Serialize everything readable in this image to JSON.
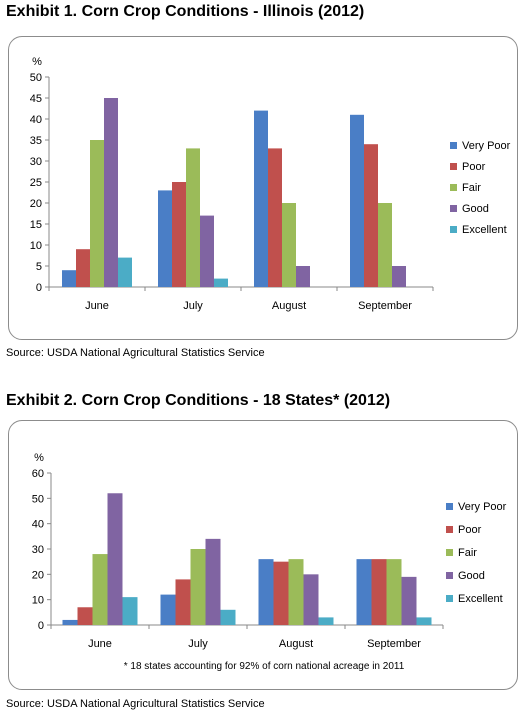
{
  "exhibit1": {
    "title": "Exhibit 1. Corn Crop Conditions - Illinois (2012)",
    "source": "Source: USDA National Agricultural Statistics Service"
  },
  "exhibit2": {
    "title": "Exhibit 2. Corn Crop Conditions - 18 States* (2012)",
    "source": "Source: USDA National Agricultural Statistics Service",
    "footnote": "* 18 states accounting for 92% of corn national acreage in 2011"
  },
  "colors": {
    "Very Poor": "#4a7ec6",
    "Poor": "#c0504d",
    "Fair": "#9bbb59",
    "Good": "#8064a2",
    "Excellent": "#4bacc6"
  },
  "chart_data": [
    {
      "type": "bar",
      "title": "Exhibit 1. Corn Crop Conditions - Illinois (2012)",
      "ylabel": "%",
      "ylim": [
        0,
        50
      ],
      "yticks": [
        0,
        5,
        10,
        15,
        20,
        25,
        30,
        35,
        40,
        45,
        50
      ],
      "grid": false,
      "legend": "right",
      "categories": [
        "June",
        "July",
        "August",
        "September"
      ],
      "series": [
        {
          "name": "Very Poor",
          "values": [
            4,
            23,
            42,
            41
          ]
        },
        {
          "name": "Poor",
          "values": [
            9,
            25,
            33,
            34
          ]
        },
        {
          "name": "Fair",
          "values": [
            35,
            33,
            20,
            20
          ]
        },
        {
          "name": "Good",
          "values": [
            45,
            17,
            5,
            5
          ]
        },
        {
          "name": "Excellent",
          "values": [
            7,
            2,
            0,
            0
          ]
        }
      ]
    },
    {
      "type": "bar",
      "title": "Exhibit 2. Corn Crop Conditions - 18 States* (2012)",
      "ylabel": "%",
      "ylim": [
        0,
        60
      ],
      "yticks": [
        0,
        10,
        20,
        30,
        40,
        50,
        60
      ],
      "grid": false,
      "legend": "right",
      "categories": [
        "June",
        "July",
        "August",
        "September"
      ],
      "series": [
        {
          "name": "Very Poor",
          "values": [
            2,
            12,
            26,
            26
          ]
        },
        {
          "name": "Poor",
          "values": [
            7,
            18,
            25,
            26
          ]
        },
        {
          "name": "Fair",
          "values": [
            28,
            30,
            26,
            26
          ]
        },
        {
          "name": "Good",
          "values": [
            52,
            34,
            20,
            19
          ]
        },
        {
          "name": "Excellent",
          "values": [
            11,
            6,
            3,
            3
          ]
        }
      ]
    }
  ]
}
